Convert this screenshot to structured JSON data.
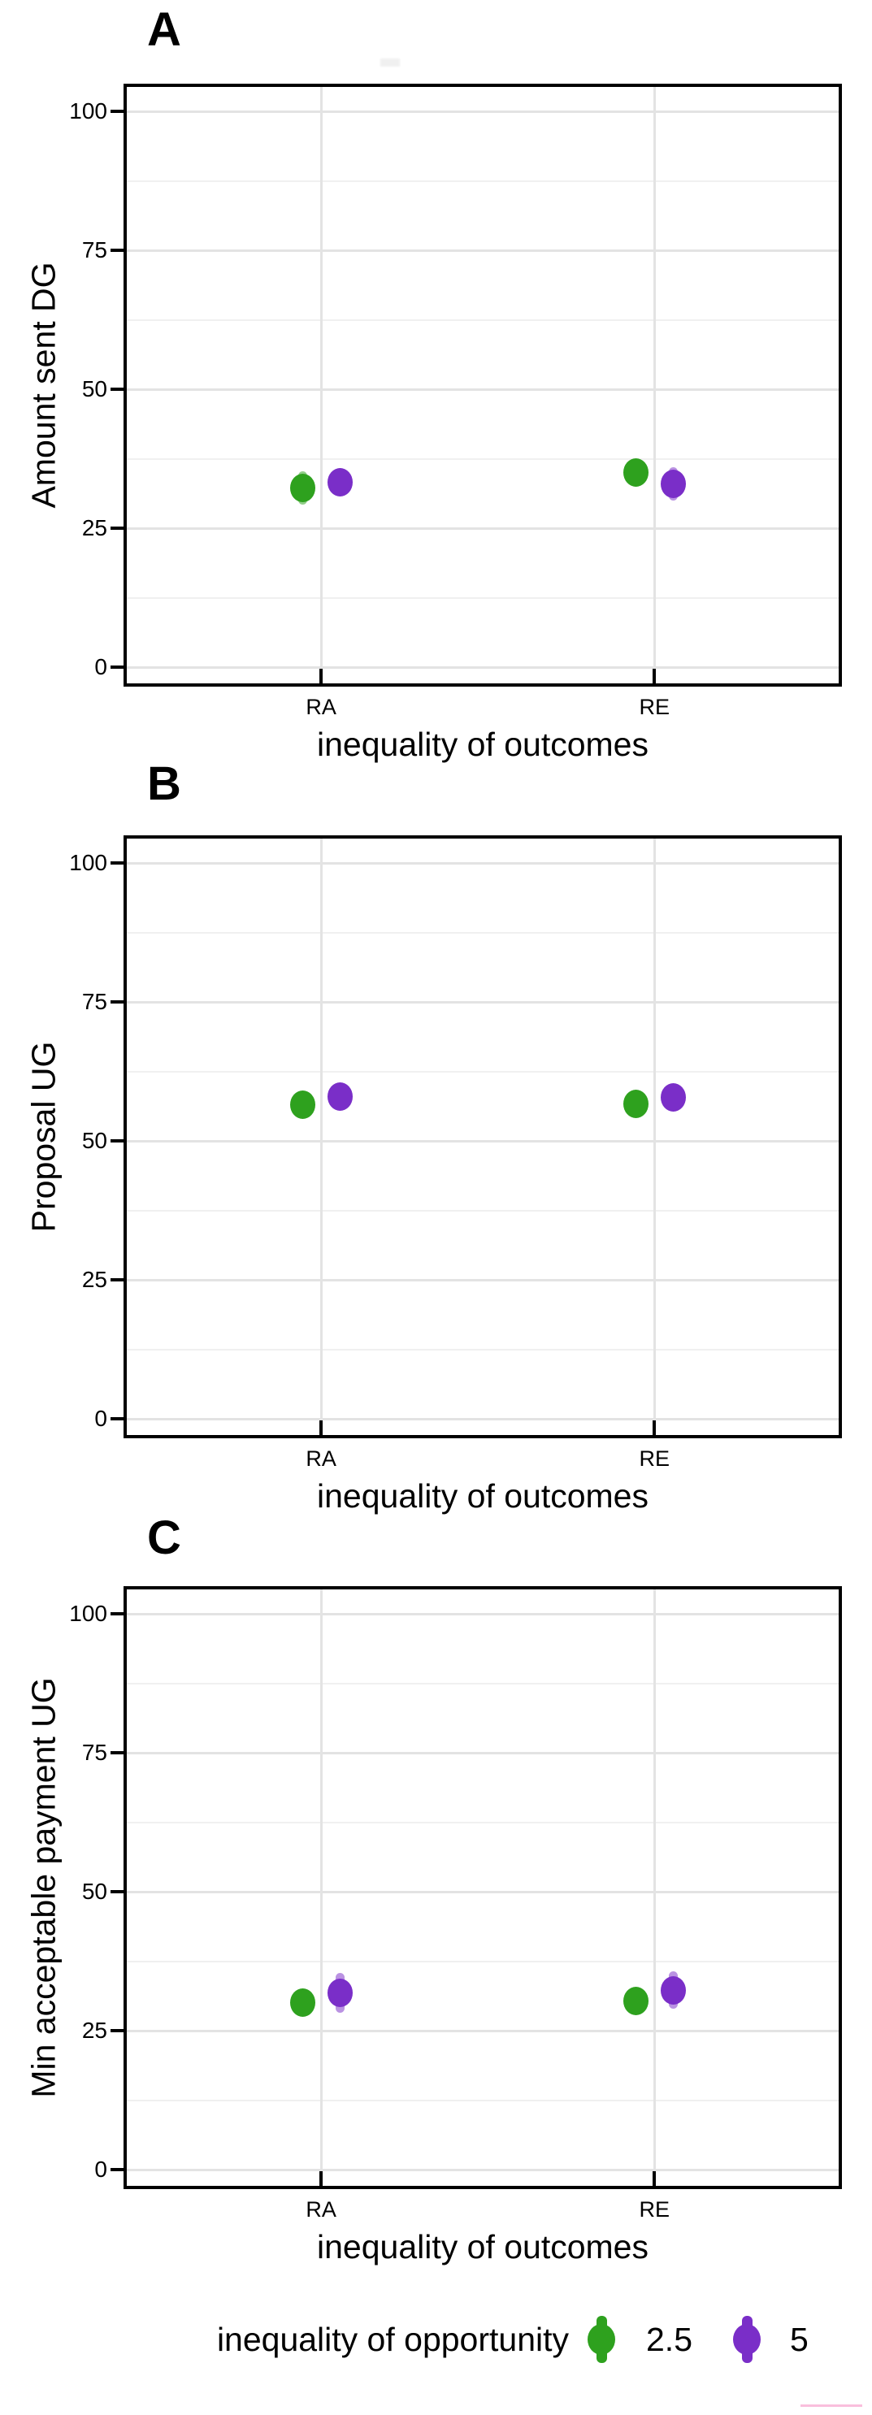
{
  "figure_background": "#ffffff",
  "legend": {
    "title": "inequality of opportunity",
    "entries": [
      {
        "label": "2.5",
        "color": "#2EA11E"
      },
      {
        "label": "5",
        "color": "#7A2EC8"
      }
    ]
  },
  "artifacts": {
    "pink_underline_color": "#F9BEDC",
    "top_smudge_color": "rgba(0,0,0,0.06)"
  },
  "chart_data": [
    {
      "type": "scatter",
      "panel_label": "A",
      "title": "",
      "xlabel": "inequality of outcomes",
      "ylabel": "Amount sent DG",
      "categories": [
        "RA",
        "RE"
      ],
      "y_ticks": [
        0,
        25,
        50,
        75,
        100
      ],
      "ylim": [
        0,
        100
      ],
      "grid": true,
      "legend_position": "none",
      "series": [
        {
          "name": "2.5",
          "color": "#2EA11E",
          "values": [
            32.2,
            35.0
          ],
          "errors": [
            3.0,
            2.5
          ]
        },
        {
          "name": "5",
          "color": "#7A2EC8",
          "values": [
            33.3,
            33.0
          ],
          "errors": [
            2.5,
            3.0
          ]
        }
      ]
    },
    {
      "type": "scatter",
      "panel_label": "B",
      "title": "",
      "xlabel": "inequality of outcomes",
      "ylabel": "Proposal UG",
      "categories": [
        "RA",
        "RE"
      ],
      "y_ticks": [
        0,
        25,
        50,
        75,
        100
      ],
      "ylim": [
        0,
        100
      ],
      "grid": true,
      "legend_position": "none",
      "series": [
        {
          "name": "2.5",
          "color": "#2EA11E",
          "values": [
            56.5,
            56.6
          ],
          "errors": [
            2.0,
            1.5
          ]
        },
        {
          "name": "5",
          "color": "#7A2EC8",
          "values": [
            58.0,
            57.8
          ],
          "errors": [
            2.2,
            2.0
          ]
        }
      ]
    },
    {
      "type": "scatter",
      "panel_label": "C",
      "title": "",
      "xlabel": "inequality of outcomes",
      "ylabel": "Min acceptable payment UG",
      "categories": [
        "RA",
        "RE"
      ],
      "y_ticks": [
        0,
        25,
        50,
        75,
        100
      ],
      "ylim": [
        0,
        100
      ],
      "grid": true,
      "legend_position": "none",
      "series": [
        {
          "name": "2.5",
          "color": "#2EA11E",
          "values": [
            30.0,
            30.4
          ],
          "errors": [
            2.0,
            1.6
          ]
        },
        {
          "name": "5",
          "color": "#7A2EC8",
          "values": [
            31.8,
            32.3
          ],
          "errors": [
            3.6,
            3.4
          ]
        }
      ]
    }
  ]
}
